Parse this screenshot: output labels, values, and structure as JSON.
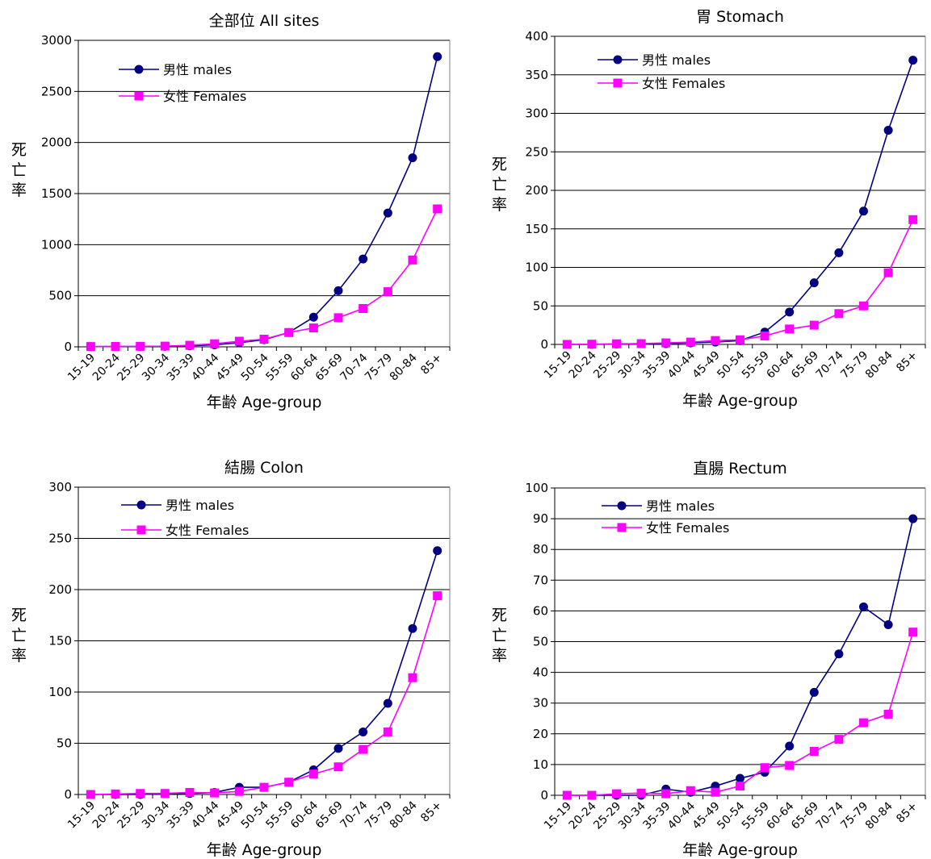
{
  "colors": {
    "males": "#000080",
    "females": "#FF00FF",
    "grid": "#000000"
  },
  "chart_data": [
    {
      "type": "line",
      "title": "全部位 All sites",
      "xlabel": "年齢 Age-group",
      "ylabel": "死亡率",
      "ylim": [
        0,
        3000
      ],
      "yticks": [
        "0",
        "500",
        "1000",
        "1500",
        "2000",
        "2500",
        "3000"
      ],
      "categories": [
        "15-19",
        "20-24",
        "25-29",
        "30-34",
        "35-39",
        "40-44",
        "45-49",
        "50-54",
        "55-59",
        "60-64",
        "65-69",
        "70-74",
        "75-79",
        "80-84",
        "85+"
      ],
      "series": [
        {
          "name": "男性 males",
          "values": [
            2,
            3,
            4,
            5,
            10,
            20,
            40,
            70,
            140,
            290,
            550,
            860,
            1310,
            1850,
            2840
          ]
        },
        {
          "name": "女性 Females",
          "values": [
            3,
            4,
            5,
            7,
            15,
            30,
            55,
            75,
            140,
            185,
            285,
            375,
            540,
            850,
            1350
          ]
        }
      ],
      "legend": "top-left",
      "grid": true
    },
    {
      "type": "line",
      "title": "胃 Stomach",
      "xlabel": "年齢 Age-group",
      "ylabel": "死亡率",
      "ylim": [
        0,
        400
      ],
      "yticks": [
        "0",
        "50",
        "100",
        "150",
        "200",
        "250",
        "300",
        "350",
        "400"
      ],
      "categories": [
        "15-19",
        "20-24",
        "25-29",
        "30-34",
        "35-39",
        "40-44",
        "45-49",
        "50-54",
        "55-59",
        "60-64",
        "65-69",
        "70-74",
        "75-79",
        "80-84",
        "85+"
      ],
      "series": [
        {
          "name": "男性 males",
          "values": [
            0,
            0,
            0.5,
            1,
            1,
            2,
            3,
            5,
            16,
            42,
            80,
            119,
            173,
            278,
            369
          ]
        },
        {
          "name": "女性 Females",
          "values": [
            0,
            0.3,
            0.8,
            1,
            2,
            3,
            5,
            6,
            11,
            20,
            25,
            40,
            50,
            93,
            162
          ]
        }
      ],
      "legend": "top-left",
      "grid": true
    },
    {
      "type": "line",
      "title": "結腸 Colon",
      "xlabel": "年齢 Age-group",
      "ylabel": "死亡率",
      "ylim": [
        0,
        300
      ],
      "yticks": [
        "0",
        "50",
        "100",
        "150",
        "200",
        "250",
        "300"
      ],
      "categories": [
        "15-19",
        "20-24",
        "25-29",
        "30-34",
        "35-39",
        "40-44",
        "45-49",
        "50-54",
        "55-59",
        "60-64",
        "65-69",
        "70-74",
        "75-79",
        "80-84",
        "85+"
      ],
      "series": [
        {
          "name": "男性 males",
          "values": [
            0,
            0,
            0,
            1,
            1,
            2,
            7,
            7,
            12,
            24,
            45,
            61,
            89,
            162,
            238
          ]
        },
        {
          "name": "女性 Females",
          "values": [
            0,
            0.5,
            1,
            1,
            2,
            1.5,
            3,
            7,
            12,
            20,
            27,
            44,
            61,
            114,
            194
          ]
        }
      ],
      "legend": "top-left",
      "grid": true
    },
    {
      "type": "line",
      "title": "直腸 Rectum",
      "xlabel": "年齢 Age-group",
      "ylabel": "死亡率",
      "ylim": [
        0,
        100
      ],
      "yticks": [
        "0",
        "10",
        "20",
        "30",
        "40",
        "50",
        "60",
        "70",
        "80",
        "90",
        "100"
      ],
      "categories": [
        "15-19",
        "20-24",
        "25-29",
        "30-34",
        "35-39",
        "40-44",
        "45-49",
        "50-54",
        "55-59",
        "60-64",
        "65-69",
        "70-74",
        "75-79",
        "80-84",
        "85+"
      ],
      "series": [
        {
          "name": "男性 males",
          "values": [
            0,
            0,
            0,
            0,
            2,
            1,
            3,
            5.5,
            7.5,
            16,
            33.5,
            46,
            61.3,
            55.5,
            90
          ]
        },
        {
          "name": "女性 Females",
          "values": [
            0,
            0,
            0.5,
            0.7,
            0.5,
            1.5,
            1,
            3,
            9,
            9.7,
            14.3,
            18.2,
            23.6,
            26.4,
            53.1
          ]
        }
      ],
      "legend": "top-left",
      "grid": true
    }
  ]
}
